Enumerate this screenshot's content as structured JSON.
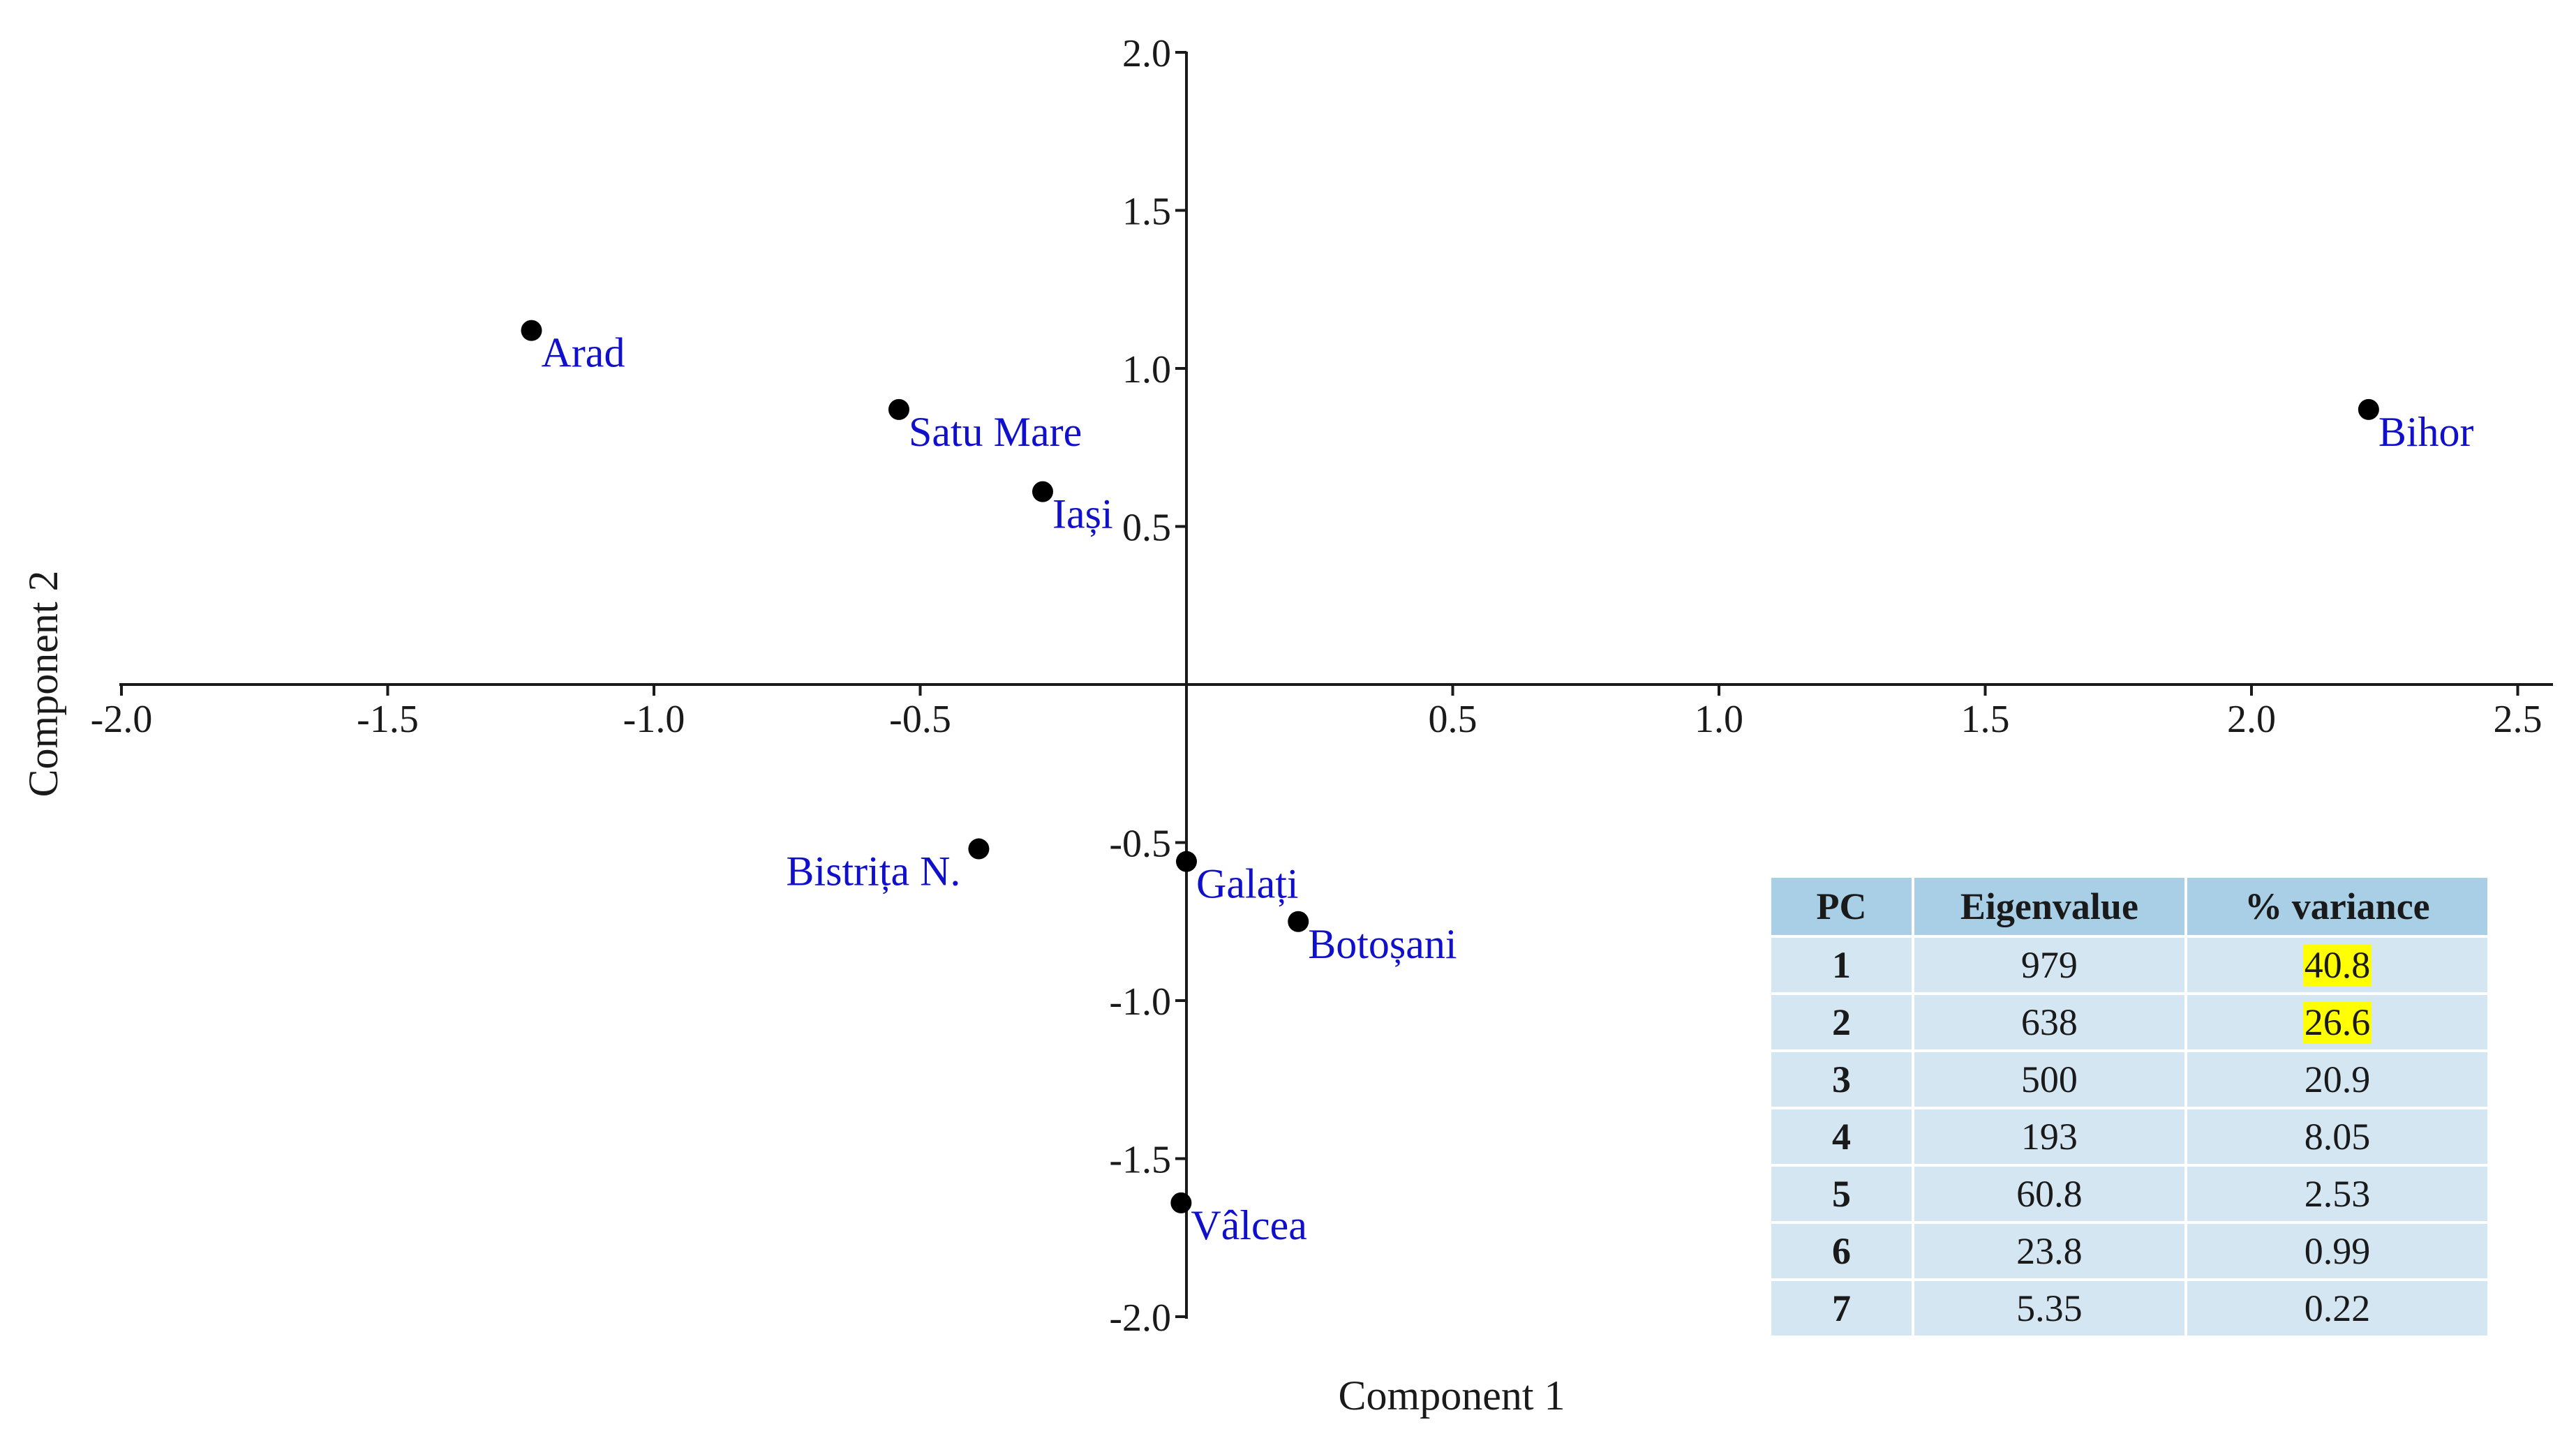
{
  "colors": {
    "axis": "#1a1a1a",
    "point": "#000000",
    "point_label": "#1010cc",
    "table_header": "#a8cfe6",
    "table_row": "#d4e6f2",
    "highlight": "#ffff00"
  },
  "chart_data": {
    "type": "scatter",
    "title": "",
    "xlabel": "Component 1",
    "ylabel": "Component 2",
    "xlim": [
      -2.0,
      2.5
    ],
    "ylim": [
      -2.0,
      2.0
    ],
    "grid": false,
    "x_ticks": [
      "-2.0",
      "-1.5",
      "-1.0",
      "-0.5",
      "0.5",
      "1.0",
      "1.5",
      "2.0",
      "2.5"
    ],
    "x_tick_values": [
      -2.0,
      -1.5,
      -1.0,
      -0.5,
      0.5,
      1.0,
      1.5,
      2.0,
      2.5
    ],
    "y_ticks": [
      "2.0",
      "1.5",
      "1.0",
      "0.5",
      "-0.5",
      "-1.0",
      "-1.5",
      "-2.0"
    ],
    "y_tick_values": [
      2.0,
      1.5,
      1.0,
      0.5,
      -0.5,
      -1.0,
      -1.5,
      -2.0
    ],
    "points": [
      {
        "label": "Arad",
        "x": -1.23,
        "y": 1.12,
        "label_side": "right"
      },
      {
        "label": "Satu Mare",
        "x": -0.54,
        "y": 0.87,
        "label_side": "right"
      },
      {
        "label": "Iași",
        "x": -0.27,
        "y": 0.61,
        "label_side": "right"
      },
      {
        "label": "Bihor",
        "x": 2.22,
        "y": 0.87,
        "label_side": "right"
      },
      {
        "label": "Bistrița N.",
        "x": -0.39,
        "y": -0.52,
        "label_side": "left"
      },
      {
        "label": "Galați",
        "x": 0.0,
        "y": -0.56,
        "label_side": "right"
      },
      {
        "label": "Botoșani",
        "x": 0.21,
        "y": -0.75,
        "label_side": "right"
      },
      {
        "label": "Vâlcea",
        "x": -0.01,
        "y": -1.64,
        "label_side": "right"
      }
    ]
  },
  "table": {
    "headers": [
      "PC",
      "Eigenvalue",
      "% variance"
    ],
    "rows": [
      {
        "pc": "1",
        "eigenvalue": "979",
        "variance": "40.8",
        "highlight": true
      },
      {
        "pc": "2",
        "eigenvalue": "638",
        "variance": "26.6",
        "highlight": true
      },
      {
        "pc": "3",
        "eigenvalue": "500",
        "variance": "20.9",
        "highlight": false
      },
      {
        "pc": "4",
        "eigenvalue": "193",
        "variance": "8.05",
        "highlight": false
      },
      {
        "pc": "5",
        "eigenvalue": "60.8",
        "variance": "2.53",
        "highlight": false
      },
      {
        "pc": "6",
        "eigenvalue": "23.8",
        "variance": "0.99",
        "highlight": false
      },
      {
        "pc": "7",
        "eigenvalue": "5.35",
        "variance": "0.22",
        "highlight": false
      }
    ]
  }
}
